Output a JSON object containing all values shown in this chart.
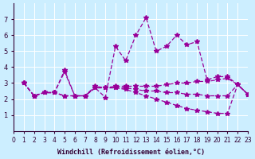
{
  "xlabel": "Windchill (Refroidissement éolien,°C)",
  "ylabel": "",
  "bg_color": "#cceeff",
  "line_color": "#990099",
  "xlim": [
    0,
    23
  ],
  "ylim": [
    0,
    8
  ],
  "xticks": [
    0,
    1,
    2,
    3,
    4,
    5,
    6,
    7,
    8,
    9,
    10,
    11,
    12,
    13,
    14,
    15,
    16,
    17,
    18,
    19,
    20,
    21,
    22,
    23
  ],
  "yticks": [
    1,
    2,
    3,
    4,
    5,
    6,
    7
  ],
  "series": [
    [
      3.0,
      2.2,
      2.4,
      2.4,
      3.8,
      2.2,
      2.2,
      2.7,
      2.1,
      5.3,
      4.4,
      6.0,
      7.1,
      5.0,
      5.3,
      6.0,
      5.4,
      5.6,
      3.2,
      3.4,
      3.4,
      2.9,
      2.3
    ],
    [
      3.0,
      2.2,
      2.4,
      2.4,
      3.7,
      2.2,
      2.2,
      2.8,
      2.7,
      2.8,
      2.8,
      2.8,
      2.8,
      2.8,
      2.9,
      3.0,
      3.0,
      3.1,
      3.1,
      3.2,
      3.3,
      2.9,
      2.3
    ],
    [
      3.0,
      2.2,
      2.4,
      2.4,
      2.2,
      2.2,
      2.2,
      2.7,
      2.7,
      2.7,
      2.7,
      2.6,
      2.5,
      2.5,
      2.4,
      2.4,
      2.3,
      2.3,
      2.2,
      2.2,
      2.2,
      2.9,
      2.3
    ],
    [
      3.0,
      2.2,
      2.4,
      2.4,
      2.2,
      2.2,
      2.2,
      2.7,
      2.7,
      2.7,
      2.6,
      2.4,
      2.2,
      2.0,
      1.8,
      1.6,
      1.4,
      1.3,
      1.2,
      1.1,
      1.1,
      2.9,
      2.3
    ]
  ]
}
